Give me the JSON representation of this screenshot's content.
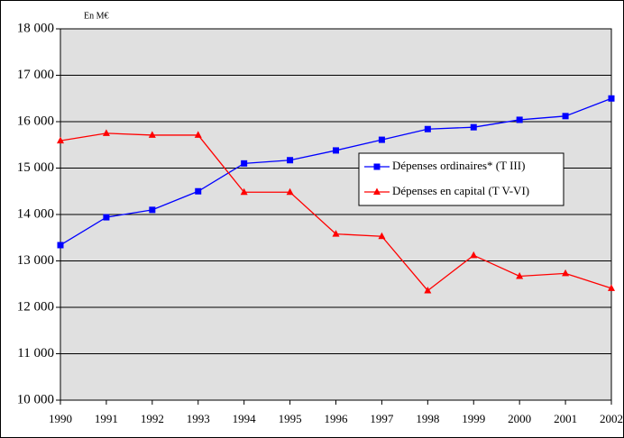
{
  "chart_data": {
    "type": "line",
    "annotation": "En M€",
    "categories": [
      "1990",
      "1991",
      "1992",
      "1993",
      "1994",
      "1995",
      "1996",
      "1997",
      "1998",
      "1999",
      "2000",
      "2001",
      "2002"
    ],
    "series": [
      {
        "name": "Dépenses ordinaires* (T III)",
        "color": "#0000ff",
        "marker": "square",
        "values": [
          13340,
          13940,
          14100,
          14500,
          15100,
          15170,
          15380,
          15610,
          15840,
          15880,
          16040,
          16120,
          16500
        ]
      },
      {
        "name": "Dépenses en capital (T V-VI)",
        "color": "#ff0000",
        "marker": "triangle",
        "values": [
          15590,
          15750,
          15710,
          15710,
          14480,
          14480,
          13580,
          13530,
          12360,
          13120,
          12670,
          12730,
          12410
        ]
      }
    ],
    "ylim": [
      10000,
      18000
    ],
    "yticks": [
      {
        "value": 10000,
        "label": "10 000"
      },
      {
        "value": 11000,
        "label": "11 000"
      },
      {
        "value": 12000,
        "label": "12 000"
      },
      {
        "value": 13000,
        "label": "13 000"
      },
      {
        "value": 14000,
        "label": "14 000"
      },
      {
        "value": 15000,
        "label": "15 000"
      },
      {
        "value": 16000,
        "label": "16 000"
      },
      {
        "value": 17000,
        "label": "17 000"
      },
      {
        "value": 18000,
        "label": "18 000"
      }
    ],
    "grid": true,
    "background": "#e0e0e0"
  }
}
